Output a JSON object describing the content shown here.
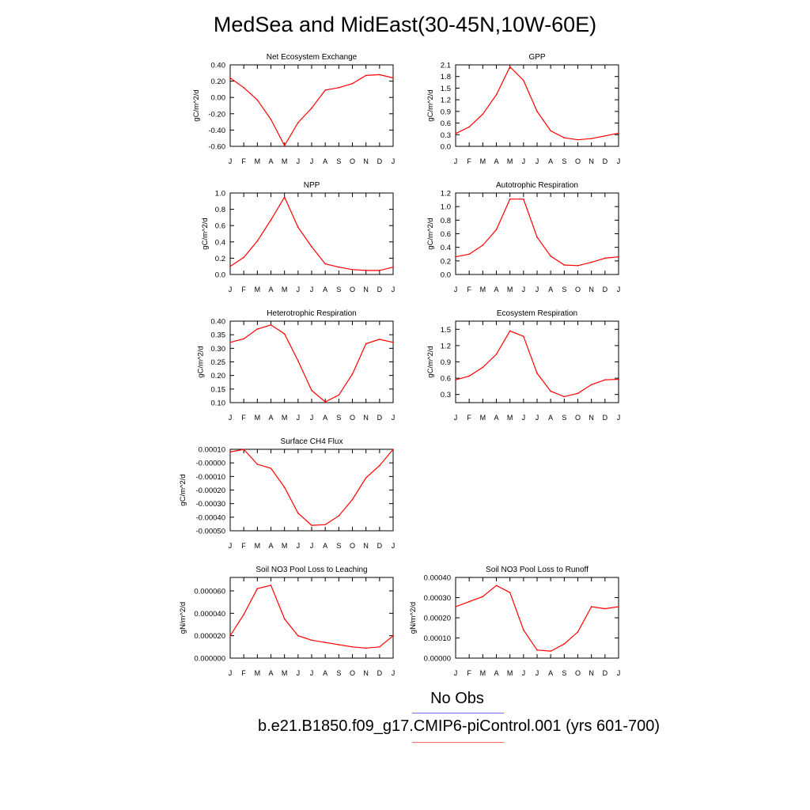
{
  "title": "MedSea and MidEast(30-45N,10W-60E)",
  "legend": {
    "obs_label": "No Obs",
    "obs_color": "#7070e8",
    "case_label": "b.e21.B1850.f09_g17.CMIP6-piControl.001 (yrs 601-700)",
    "case_color": "#ff0000"
  },
  "chart_data": [
    {
      "type": "line",
      "title": "Net Ecosystem Exchange",
      "ylabel": "gC/m^2/d",
      "categories": [
        "J",
        "F",
        "M",
        "A",
        "M",
        "J",
        "J",
        "A",
        "S",
        "O",
        "N",
        "D",
        "J"
      ],
      "ylim": [
        -0.6,
        0.4
      ],
      "yticks": [
        -0.6,
        -0.4,
        -0.2,
        0.0,
        0.2,
        0.4
      ],
      "yticklabels": [
        "-0.60",
        "-0.40",
        "-0.20",
        "0.00",
        "0.20",
        "0.40"
      ],
      "values": [
        0.24,
        0.12,
        -0.03,
        -0.27,
        -0.59,
        -0.31,
        -0.13,
        0.09,
        0.12,
        0.17,
        0.27,
        0.28,
        0.24
      ]
    },
    {
      "type": "line",
      "title": "GPP",
      "ylabel": "gC/m^2/d",
      "categories": [
        "J",
        "F",
        "M",
        "A",
        "M",
        "J",
        "J",
        "A",
        "S",
        "O",
        "N",
        "D",
        "J"
      ],
      "ylim": [
        0.0,
        2.1
      ],
      "yticks": [
        0.0,
        0.3,
        0.6,
        0.9,
        1.2,
        1.5,
        1.8,
        2.1
      ],
      "yticklabels": [
        "0.0",
        "0.3",
        "0.6",
        "0.9",
        "1.2",
        "1.5",
        "1.8",
        "2.1"
      ],
      "values": [
        0.33,
        0.5,
        0.83,
        1.33,
        2.05,
        1.7,
        0.9,
        0.4,
        0.22,
        0.17,
        0.2,
        0.27,
        0.34
      ]
    },
    {
      "type": "line",
      "title": "NPP",
      "ylabel": "gC/m^2/d",
      "categories": [
        "J",
        "F",
        "M",
        "A",
        "M",
        "J",
        "J",
        "A",
        "S",
        "O",
        "N",
        "D",
        "J"
      ],
      "ylim": [
        0.0,
        1.0
      ],
      "yticks": [
        0.0,
        0.2,
        0.4,
        0.6,
        0.8,
        1.0
      ],
      "yticklabels": [
        "0.0",
        "0.2",
        "0.4",
        "0.6",
        "0.8",
        "1.0"
      ],
      "values": [
        0.1,
        0.21,
        0.41,
        0.67,
        0.95,
        0.58,
        0.34,
        0.13,
        0.09,
        0.06,
        0.05,
        0.05,
        0.09
      ]
    },
    {
      "type": "line",
      "title": "Autotrophic Respiration",
      "ylabel": "gC/m^2/d",
      "categories": [
        "J",
        "F",
        "M",
        "A",
        "M",
        "J",
        "J",
        "A",
        "S",
        "O",
        "N",
        "D",
        "J"
      ],
      "ylim": [
        0.0,
        1.2
      ],
      "yticks": [
        0.0,
        0.2,
        0.4,
        0.6,
        0.8,
        1.0,
        1.2
      ],
      "yticklabels": [
        "0.0",
        "0.2",
        "0.4",
        "0.6",
        "0.8",
        "1.0",
        "1.2"
      ],
      "values": [
        0.26,
        0.3,
        0.43,
        0.66,
        1.11,
        1.11,
        0.55,
        0.27,
        0.14,
        0.13,
        0.18,
        0.24,
        0.26
      ]
    },
    {
      "type": "line",
      "title": "Heterotrophic Respiration",
      "ylabel": "gC/m^2/d",
      "categories": [
        "J",
        "F",
        "M",
        "A",
        "M",
        "J",
        "J",
        "A",
        "S",
        "O",
        "N",
        "D",
        "J"
      ],
      "ylim": [
        0.1,
        0.4
      ],
      "yticks": [
        0.1,
        0.15,
        0.2,
        0.25,
        0.3,
        0.35,
        0.4
      ],
      "yticklabels": [
        "0.10",
        "0.15",
        "0.20",
        "0.25",
        "0.30",
        "0.35",
        "0.40"
      ],
      "values": [
        0.322,
        0.335,
        0.371,
        0.386,
        0.353,
        0.254,
        0.145,
        0.103,
        0.128,
        0.205,
        0.317,
        0.333,
        0.322
      ]
    },
    {
      "type": "line",
      "title": "Ecosystem Respiration",
      "ylabel": "gC/m^2/d",
      "categories": [
        "J",
        "F",
        "M",
        "A",
        "M",
        "J",
        "J",
        "A",
        "S",
        "O",
        "N",
        "D",
        "J"
      ],
      "ylim": [
        0.15,
        1.65
      ],
      "yticks": [
        0.3,
        0.6,
        0.9,
        1.2,
        1.5
      ],
      "yticklabels": [
        "0.3",
        "0.6",
        "0.9",
        "1.2",
        "1.5"
      ],
      "values": [
        0.57,
        0.64,
        0.8,
        1.04,
        1.47,
        1.37,
        0.69,
        0.36,
        0.26,
        0.32,
        0.48,
        0.57,
        0.58
      ]
    },
    {
      "type": "line",
      "title": "Surface CH4 Flux",
      "ylabel": "gC/m^2/d",
      "categories": [
        "J",
        "F",
        "M",
        "A",
        "M",
        "J",
        "J",
        "A",
        "S",
        "O",
        "N",
        "D",
        "J"
      ],
      "ylim": [
        -0.0005,
        0.0001
      ],
      "yticks": [
        -0.0005,
        -0.0004,
        -0.0003,
        -0.0002,
        -0.0001,
        0.0,
        0.0001
      ],
      "yticklabels": [
        "-0.00050",
        "-0.00040",
        "-0.00030",
        "-0.00020",
        "-0.00010",
        "-0.00000",
        "0.00010"
      ],
      "values": [
        8e-05,
        0.0001,
        -1e-05,
        -4e-05,
        -0.00018,
        -0.00037,
        -0.00046,
        -0.000455,
        -0.00039,
        -0.00027,
        -0.00011,
        -2e-05,
        0.0001
      ]
    },
    {
      "type": "line",
      "title": "Soil NO3 Pool Loss to Leaching",
      "ylabel": "gN/m^2/d",
      "categories": [
        "J",
        "F",
        "M",
        "A",
        "M",
        "J",
        "J",
        "A",
        "S",
        "O",
        "N",
        "D",
        "J"
      ],
      "ylim": [
        0.0,
        7.2e-05
      ],
      "yticks": [
        0.0,
        2e-05,
        4e-05,
        6e-05
      ],
      "yticklabels": [
        "0.000000",
        "0.000020",
        "0.000040",
        "0.000060"
      ],
      "values": [
        2e-05,
        3.9e-05,
        6.2e-05,
        6.5e-05,
        3.5e-05,
        2e-05,
        1.6e-05,
        1.4e-05,
        1.2e-05,
        1e-05,
        9e-06,
        1e-05,
        2e-05
      ]
    },
    {
      "type": "line",
      "title": "Soil NO3 Pool Loss to Runoff",
      "ylabel": "gN/m^2/d",
      "categories": [
        "J",
        "F",
        "M",
        "A",
        "M",
        "J",
        "J",
        "A",
        "S",
        "O",
        "N",
        "D",
        "J"
      ],
      "ylim": [
        0.0,
        0.0004
      ],
      "yticks": [
        0.0,
        0.0001,
        0.0002,
        0.0003,
        0.0004
      ],
      "yticklabels": [
        "0.00000",
        "0.00010",
        "0.00020",
        "0.00030",
        "0.00040"
      ],
      "values": [
        0.000255,
        0.00028,
        0.000305,
        0.00036,
        0.000325,
        0.00014,
        4e-05,
        3.5e-05,
        7e-05,
        0.00013,
        0.000255,
        0.000245,
        0.000255
      ]
    }
  ]
}
